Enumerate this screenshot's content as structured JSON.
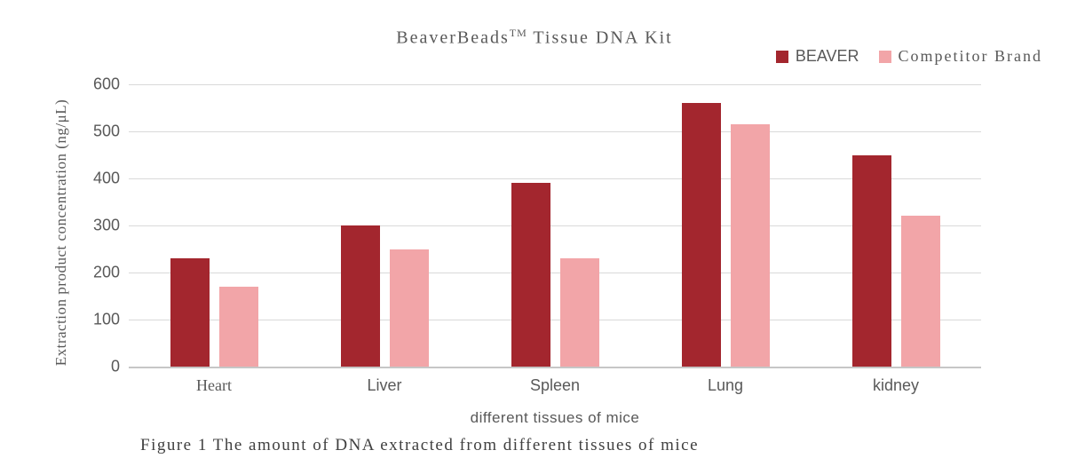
{
  "title_parts": {
    "main": "BeaverBeads",
    "sup": "TM",
    "rest": " Tissue DNA Kit"
  },
  "chart_data": {
    "type": "bar",
    "title": "BeaverBeads™ Tissue DNA Kit",
    "categories": [
      "Heart",
      "Liver",
      "Spleen",
      "Lung",
      "kidney"
    ],
    "series": [
      {
        "name": "BEAVER",
        "color": "#A3262E",
        "values": [
          230,
          300,
          390,
          560,
          450
        ]
      },
      {
        "name": "Competitor Brand",
        "color": "#F2A5A8",
        "values": [
          170,
          250,
          230,
          515,
          320
        ]
      }
    ],
    "xlabel": "different tissues of mice",
    "ylabel": "Extraction product concentration (ng/μL)",
    "ylim": [
      0,
      600
    ],
    "yticks": [
      0,
      100,
      200,
      300,
      400,
      500,
      600
    ],
    "grid": true,
    "legend_position": "top-right"
  },
  "caption": {
    "text": "Figure 1 The amount of DNA extracted from different tissues of mice"
  },
  "colors": {
    "gridline": "#D9D9D9",
    "axis_line": "#C6C6C6",
    "label_text": "#595959",
    "caption_text": "#404040"
  }
}
